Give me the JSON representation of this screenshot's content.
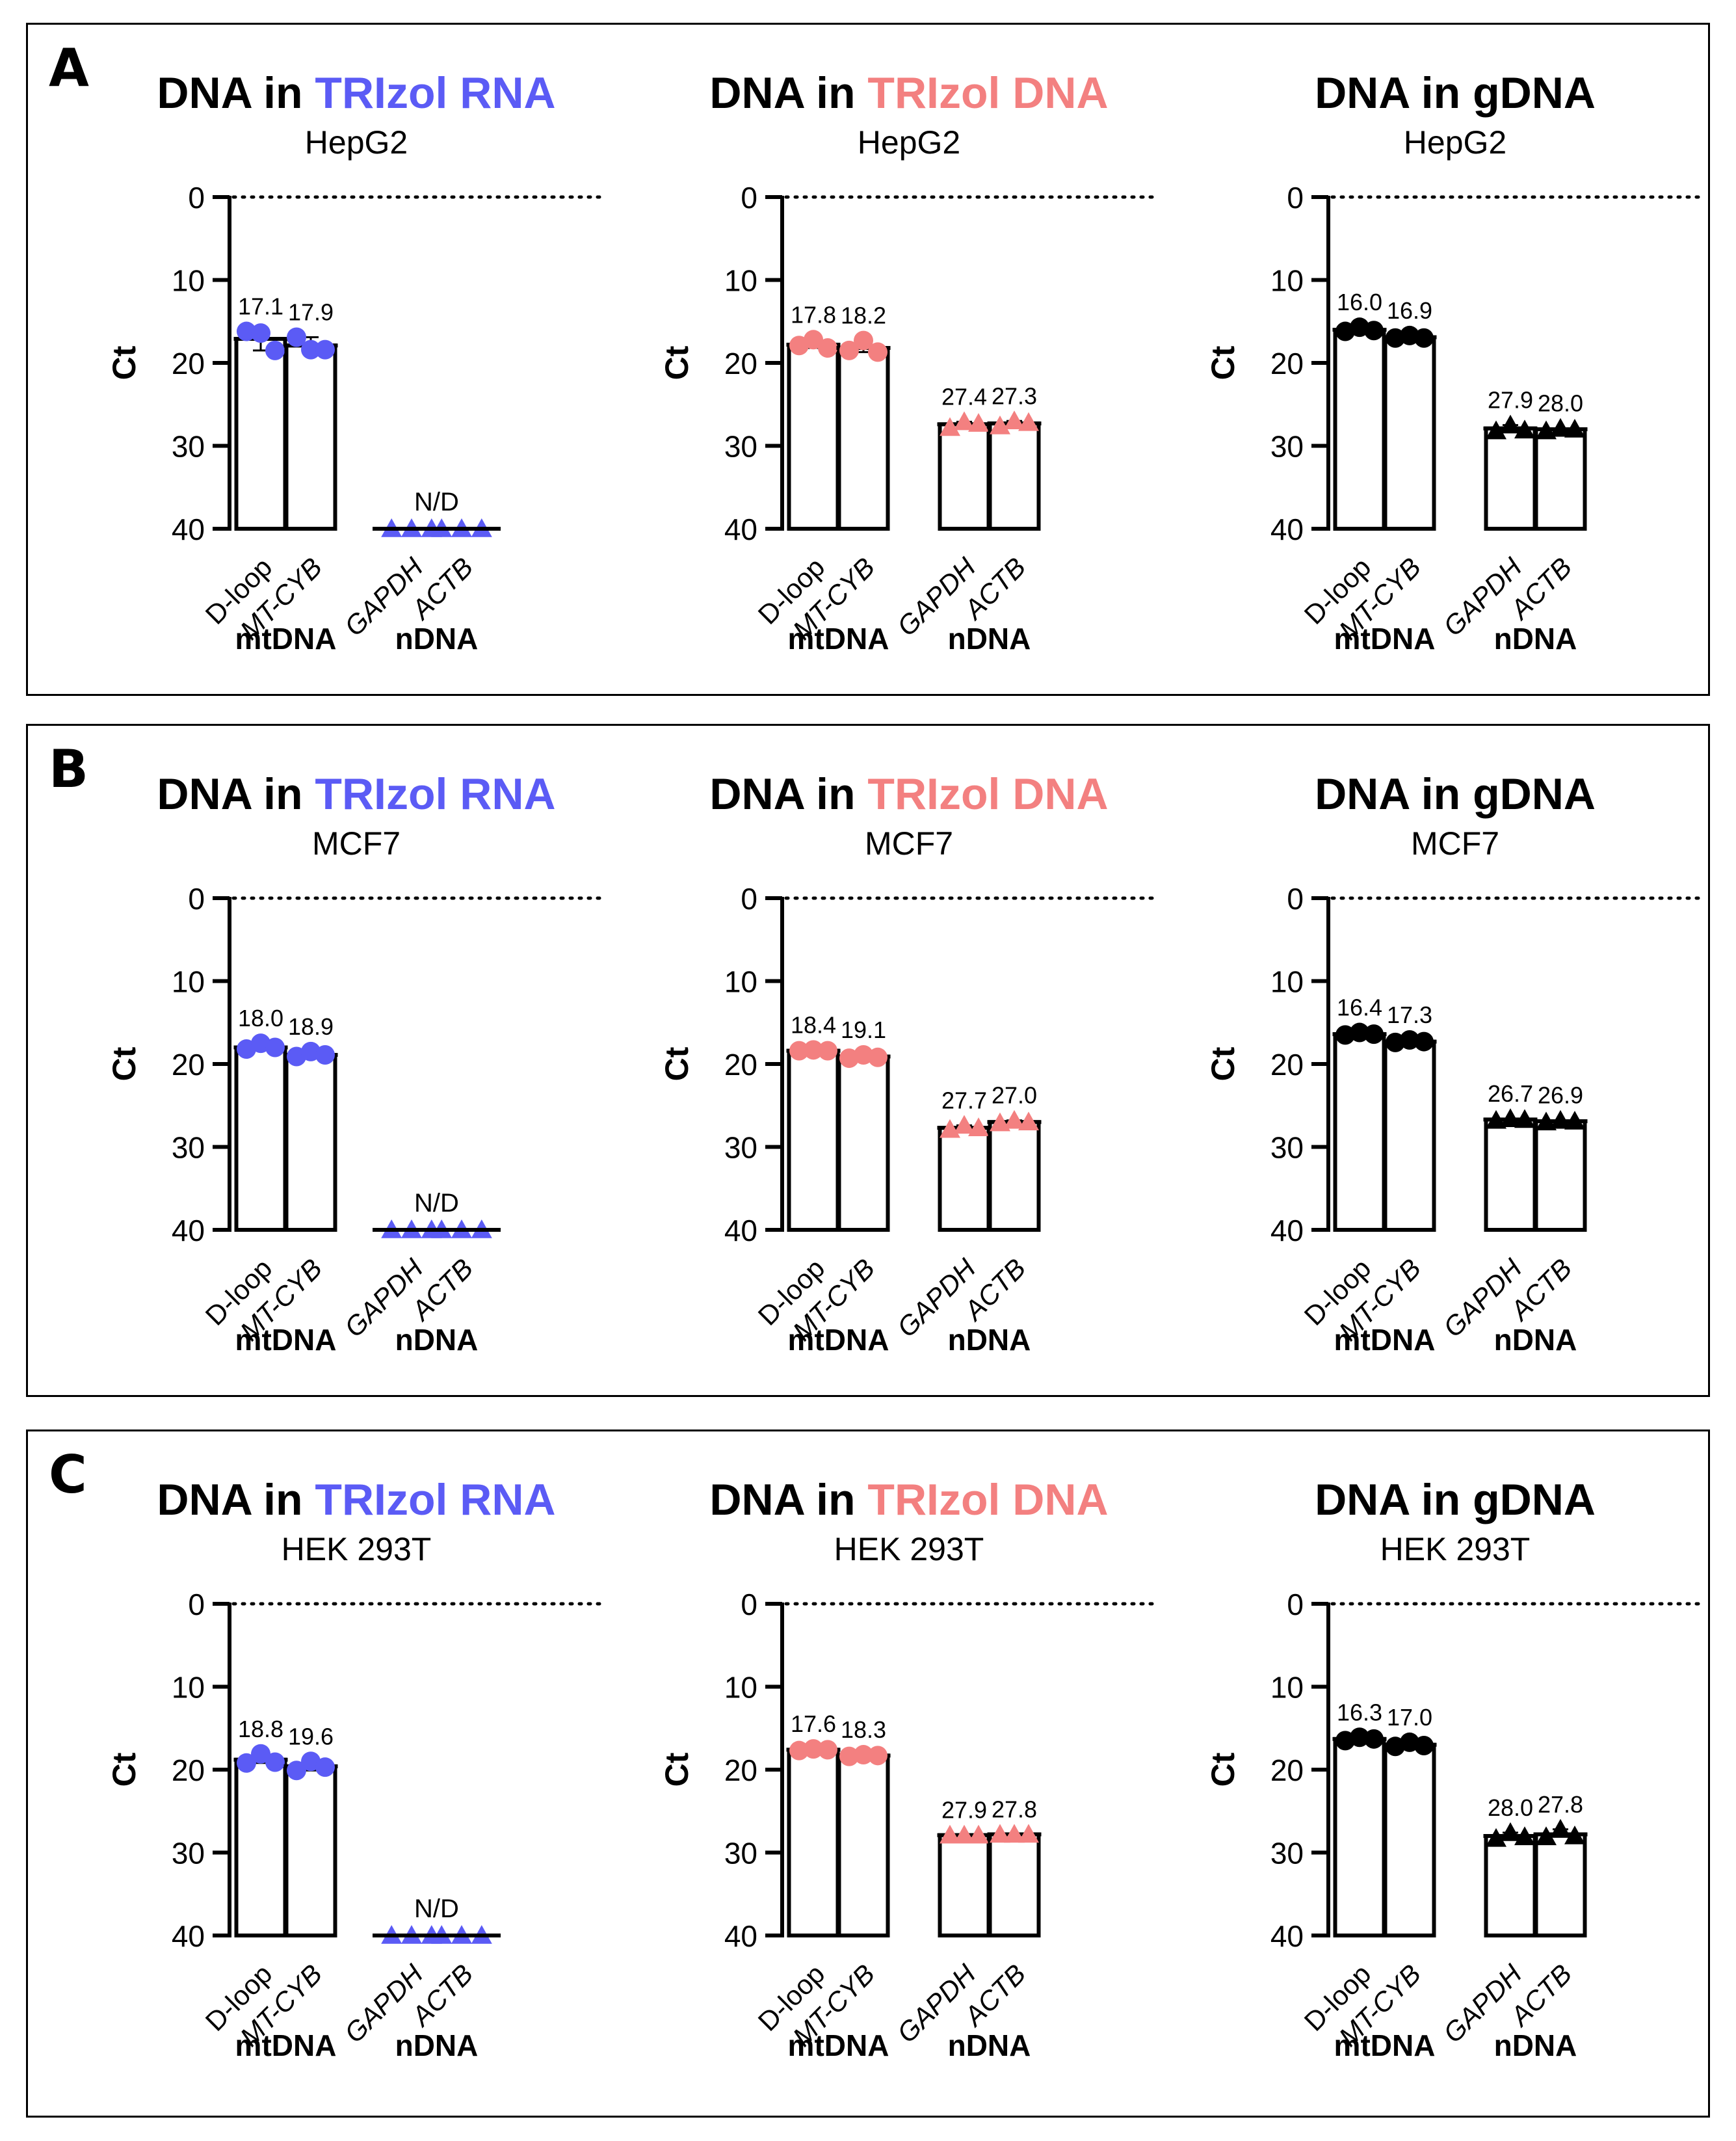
{
  "title_prefix": "DNA in ",
  "y_axis_label": "Ct",
  "colors": {
    "rna_accent": "#5b5bf5",
    "dna_accent": "#f38080",
    "gdna_accent": "#000000"
  },
  "panels": [
    {
      "letter": "A",
      "cell_line": "HepG2"
    },
    {
      "letter": "B",
      "cell_line": "MCF7"
    },
    {
      "letter": "C",
      "cell_line": "HEK 293T"
    }
  ],
  "chart_data": [
    {
      "type": "bar",
      "panel": "A",
      "title": "DNA in TRIzol RNA",
      "method": "TRIzol RNA",
      "subtitle": "HepG2",
      "ylabel": "Ct",
      "ylim": [
        40,
        0
      ],
      "yticks": [
        0,
        10,
        20,
        30,
        40
      ],
      "reference_line_y": 0,
      "categories": [
        "D-loop",
        "MT-CYB",
        "GAPDH",
        "ACTB"
      ],
      "groups": [
        {
          "label": "mtDNA",
          "categories": [
            "D-loop",
            "MT-CYB"
          ]
        },
        {
          "label": "nDNA",
          "categories": [
            "GAPDH",
            "ACTB"
          ]
        }
      ],
      "values": [
        17.1,
        17.9,
        40,
        40
      ],
      "value_labels": [
        "17.1",
        "17.9",
        "",
        ""
      ],
      "group_annotation": "N/D",
      "replicates": [
        [
          16.2,
          16.4,
          18.5
        ],
        [
          16.9,
          18.4,
          18.4
        ],
        [
          40,
          40,
          40
        ],
        [
          40,
          40,
          40
        ]
      ],
      "marker_color": "#5b5bf5"
    },
    {
      "type": "bar",
      "panel": "A",
      "title": "DNA in TRIzol DNA",
      "method": "TRIzol DNA",
      "subtitle": "HepG2",
      "ylabel": "Ct",
      "ylim": [
        40,
        0
      ],
      "yticks": [
        0,
        10,
        20,
        30,
        40
      ],
      "reference_line_y": 0,
      "categories": [
        "D-loop",
        "MT-CYB",
        "GAPDH",
        "ACTB"
      ],
      "groups": [
        {
          "label": "mtDNA",
          "categories": [
            "D-loop",
            "MT-CYB"
          ]
        },
        {
          "label": "nDNA",
          "categories": [
            "GAPDH",
            "ACTB"
          ]
        }
      ],
      "values": [
        17.8,
        18.2,
        27.4,
        27.3
      ],
      "value_labels": [
        "17.8",
        "18.2",
        "27.4",
        "27.3"
      ],
      "group_annotation": "",
      "replicates": [
        [
          17.9,
          17.2,
          18.2
        ],
        [
          18.5,
          17.3,
          18.7
        ],
        [
          27.8,
          27.1,
          27.3
        ],
        [
          27.6,
          27.0,
          27.2
        ]
      ],
      "marker_color": "#f38080"
    },
    {
      "type": "bar",
      "panel": "A",
      "title": "DNA in gDNA",
      "method": "gDNA",
      "subtitle": "HepG2",
      "ylabel": "Ct",
      "ylim": [
        40,
        0
      ],
      "yticks": [
        0,
        10,
        20,
        30,
        40
      ],
      "reference_line_y": 0,
      "categories": [
        "D-loop",
        "MT-CYB",
        "GAPDH",
        "ACTB"
      ],
      "groups": [
        {
          "label": "mtDNA",
          "categories": [
            "D-loop",
            "MT-CYB"
          ]
        },
        {
          "label": "nDNA",
          "categories": [
            "GAPDH",
            "ACTB"
          ]
        }
      ],
      "values": [
        16.0,
        16.9,
        27.9,
        28.0
      ],
      "value_labels": [
        "16.0",
        "16.9",
        "27.9",
        "28.0"
      ],
      "group_annotation": "",
      "replicates": [
        [
          16.2,
          15.7,
          16.1
        ],
        [
          17.0,
          16.7,
          17.0
        ],
        [
          28.2,
          27.5,
          28.1
        ],
        [
          28.2,
          27.9,
          28.0
        ]
      ],
      "marker_color": "#000000"
    },
    {
      "type": "bar",
      "panel": "B",
      "title": "DNA in TRIzol RNA",
      "method": "TRIzol RNA",
      "subtitle": "MCF7",
      "ylabel": "Ct",
      "ylim": [
        40,
        0
      ],
      "yticks": [
        0,
        10,
        20,
        30,
        40
      ],
      "reference_line_y": 0,
      "categories": [
        "D-loop",
        "MT-CYB",
        "GAPDH",
        "ACTB"
      ],
      "groups": [
        {
          "label": "mtDNA",
          "categories": [
            "D-loop",
            "MT-CYB"
          ]
        },
        {
          "label": "nDNA",
          "categories": [
            "GAPDH",
            "ACTB"
          ]
        }
      ],
      "values": [
        18.0,
        18.9,
        40,
        40
      ],
      "value_labels": [
        "18.0",
        "18.9",
        "",
        ""
      ],
      "group_annotation": "N/D",
      "replicates": [
        [
          18.2,
          17.5,
          18.0
        ],
        [
          19.1,
          18.5,
          18.9
        ],
        [
          40,
          40,
          40
        ],
        [
          40,
          40,
          40
        ]
      ],
      "marker_color": "#5b5bf5"
    },
    {
      "type": "bar",
      "panel": "B",
      "title": "DNA in TRIzol DNA",
      "method": "TRIzol DNA",
      "subtitle": "MCF7",
      "ylabel": "Ct",
      "ylim": [
        40,
        0
      ],
      "yticks": [
        0,
        10,
        20,
        30,
        40
      ],
      "reference_line_y": 0,
      "categories": [
        "D-loop",
        "MT-CYB",
        "GAPDH",
        "ACTB"
      ],
      "groups": [
        {
          "label": "mtDNA",
          "categories": [
            "D-loop",
            "MT-CYB"
          ]
        },
        {
          "label": "nDNA",
          "categories": [
            "GAPDH",
            "ACTB"
          ]
        }
      ],
      "values": [
        18.4,
        19.1,
        27.7,
        27.0
      ],
      "value_labels": [
        "18.4",
        "19.1",
        "27.7",
        "27.0"
      ],
      "group_annotation": "",
      "replicates": [
        [
          18.4,
          18.3,
          18.4
        ],
        [
          19.3,
          18.9,
          19.2
        ],
        [
          27.9,
          27.4,
          27.7
        ],
        [
          27.1,
          26.8,
          27.0
        ]
      ],
      "marker_color": "#f38080"
    },
    {
      "type": "bar",
      "panel": "B",
      "title": "DNA in gDNA",
      "method": "gDNA",
      "subtitle": "MCF7",
      "ylabel": "Ct",
      "ylim": [
        40,
        0
      ],
      "yticks": [
        0,
        10,
        20,
        30,
        40
      ],
      "reference_line_y": 0,
      "categories": [
        "D-loop",
        "MT-CYB",
        "GAPDH",
        "ACTB"
      ],
      "groups": [
        {
          "label": "mtDNA",
          "categories": [
            "D-loop",
            "MT-CYB"
          ]
        },
        {
          "label": "nDNA",
          "categories": [
            "GAPDH",
            "ACTB"
          ]
        }
      ],
      "values": [
        16.4,
        17.3,
        26.7,
        26.9
      ],
      "value_labels": [
        "16.4",
        "17.3",
        "26.7",
        "26.9"
      ],
      "group_annotation": "",
      "replicates": [
        [
          16.5,
          16.2,
          16.4
        ],
        [
          17.4,
          17.1,
          17.3
        ],
        [
          26.8,
          26.6,
          26.7
        ],
        [
          27.0,
          26.8,
          26.9
        ]
      ],
      "marker_color": "#000000"
    },
    {
      "type": "bar",
      "panel": "C",
      "title": "DNA in TRIzol RNA",
      "method": "TRIzol RNA",
      "subtitle": "HEK 293T",
      "ylabel": "Ct",
      "ylim": [
        40,
        0
      ],
      "yticks": [
        0,
        10,
        20,
        30,
        40
      ],
      "reference_line_y": 0,
      "categories": [
        "D-loop",
        "MT-CYB",
        "GAPDH",
        "ACTB"
      ],
      "groups": [
        {
          "label": "mtDNA",
          "categories": [
            "D-loop",
            "MT-CYB"
          ]
        },
        {
          "label": "nDNA",
          "categories": [
            "GAPDH",
            "ACTB"
          ]
        }
      ],
      "values": [
        18.8,
        19.6,
        40,
        40
      ],
      "value_labels": [
        "18.8",
        "19.6",
        "",
        ""
      ],
      "group_annotation": "N/D",
      "replicates": [
        [
          19.2,
          18.1,
          19.1
        ],
        [
          20.1,
          19.0,
          19.7
        ],
        [
          40,
          40,
          40
        ],
        [
          40,
          40,
          40
        ]
      ],
      "marker_color": "#5b5bf5"
    },
    {
      "type": "bar",
      "panel": "C",
      "title": "DNA in TRIzol DNA",
      "method": "TRIzol DNA",
      "subtitle": "HEK 293T",
      "ylabel": "Ct",
      "ylim": [
        40,
        0
      ],
      "yticks": [
        0,
        10,
        20,
        30,
        40
      ],
      "reference_line_y": 0,
      "categories": [
        "D-loop",
        "MT-CYB",
        "GAPDH",
        "ACTB"
      ],
      "groups": [
        {
          "label": "mtDNA",
          "categories": [
            "D-loop",
            "MT-CYB"
          ]
        },
        {
          "label": "nDNA",
          "categories": [
            "GAPDH",
            "ACTB"
          ]
        }
      ],
      "values": [
        17.6,
        18.3,
        27.9,
        27.8
      ],
      "value_labels": [
        "17.6",
        "18.3",
        "27.9",
        "27.8"
      ],
      "group_annotation": "",
      "replicates": [
        [
          17.7,
          17.5,
          17.6
        ],
        [
          18.4,
          18.2,
          18.3
        ],
        [
          27.9,
          27.9,
          27.9
        ],
        [
          27.8,
          27.8,
          27.8
        ]
      ],
      "marker_color": "#f38080"
    },
    {
      "type": "bar",
      "panel": "C",
      "title": "DNA in gDNA",
      "method": "gDNA",
      "subtitle": "HEK 293T",
      "ylabel": "Ct",
      "ylim": [
        40,
        0
      ],
      "yticks": [
        0,
        10,
        20,
        30,
        40
      ],
      "reference_line_y": 0,
      "categories": [
        "D-loop",
        "MT-CYB",
        "GAPDH",
        "ACTB"
      ],
      "groups": [
        {
          "label": "mtDNA",
          "categories": [
            "D-loop",
            "MT-CYB"
          ]
        },
        {
          "label": "nDNA",
          "categories": [
            "GAPDH",
            "ACTB"
          ]
        }
      ],
      "values": [
        16.3,
        17.0,
        28.0,
        27.8
      ],
      "value_labels": [
        "16.3",
        "17.0",
        "28.0",
        "27.8"
      ],
      "group_annotation": "",
      "replicates": [
        [
          16.5,
          16.1,
          16.3
        ],
        [
          17.2,
          16.7,
          17.1
        ],
        [
          28.3,
          27.6,
          28.1
        ],
        [
          28.1,
          27.2,
          28.0
        ]
      ],
      "marker_color": "#000000"
    }
  ]
}
